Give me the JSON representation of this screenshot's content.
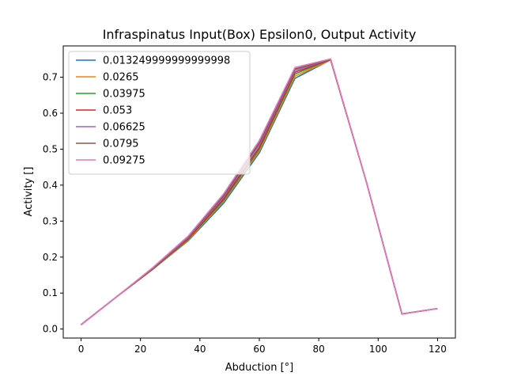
{
  "chart_data": {
    "type": "line",
    "title": "Infraspinatus Input(Box) Epsilon0, Output Activity",
    "xlabel": "Abduction [°]",
    "ylabel": "Activity []",
    "xlim": [
      -6,
      126
    ],
    "ylim": [
      -0.025,
      0.787
    ],
    "xticks": [
      0,
      20,
      40,
      60,
      80,
      100,
      120
    ],
    "yticks": [
      0.0,
      0.1,
      0.2,
      0.3,
      0.4,
      0.5,
      0.6,
      0.7
    ],
    "grid": false,
    "legend_position": "upper-left",
    "x": [
      0,
      12,
      24,
      36,
      48,
      60,
      72,
      84,
      96,
      108,
      120
    ],
    "series": [
      {
        "name": "0.013249999999999998",
        "color": "#1f77b4",
        "values": [
          0.012,
          0.09,
          0.165,
          0.245,
          0.35,
          0.49,
          0.697,
          0.748,
          0.41,
          0.042,
          0.057
        ]
      },
      {
        "name": "0.0265",
        "color": "#ff7f0e",
        "values": [
          0.012,
          0.09,
          0.165,
          0.247,
          0.355,
          0.495,
          0.703,
          0.748,
          0.41,
          0.042,
          0.057
        ]
      },
      {
        "name": "0.03975",
        "color": "#2ca02c",
        "values": [
          0.012,
          0.09,
          0.166,
          0.249,
          0.358,
          0.5,
          0.709,
          0.749,
          0.41,
          0.042,
          0.057
        ]
      },
      {
        "name": "0.053",
        "color": "#d62728",
        "values": [
          0.012,
          0.09,
          0.167,
          0.251,
          0.362,
          0.505,
          0.714,
          0.749,
          0.41,
          0.042,
          0.057
        ]
      },
      {
        "name": "0.06625",
        "color": "#9467bd",
        "values": [
          0.012,
          0.09,
          0.168,
          0.254,
          0.367,
          0.512,
          0.719,
          0.75,
          0.41,
          0.042,
          0.057
        ]
      },
      {
        "name": "0.0795",
        "color": "#8c564b",
        "values": [
          0.012,
          0.09,
          0.169,
          0.256,
          0.371,
          0.518,
          0.723,
          0.75,
          0.41,
          0.042,
          0.057
        ]
      },
      {
        "name": "0.09275",
        "color": "#e377c2",
        "values": [
          0.012,
          0.09,
          0.17,
          0.258,
          0.376,
          0.524,
          0.727,
          0.751,
          0.41,
          0.042,
          0.057
        ]
      }
    ]
  }
}
